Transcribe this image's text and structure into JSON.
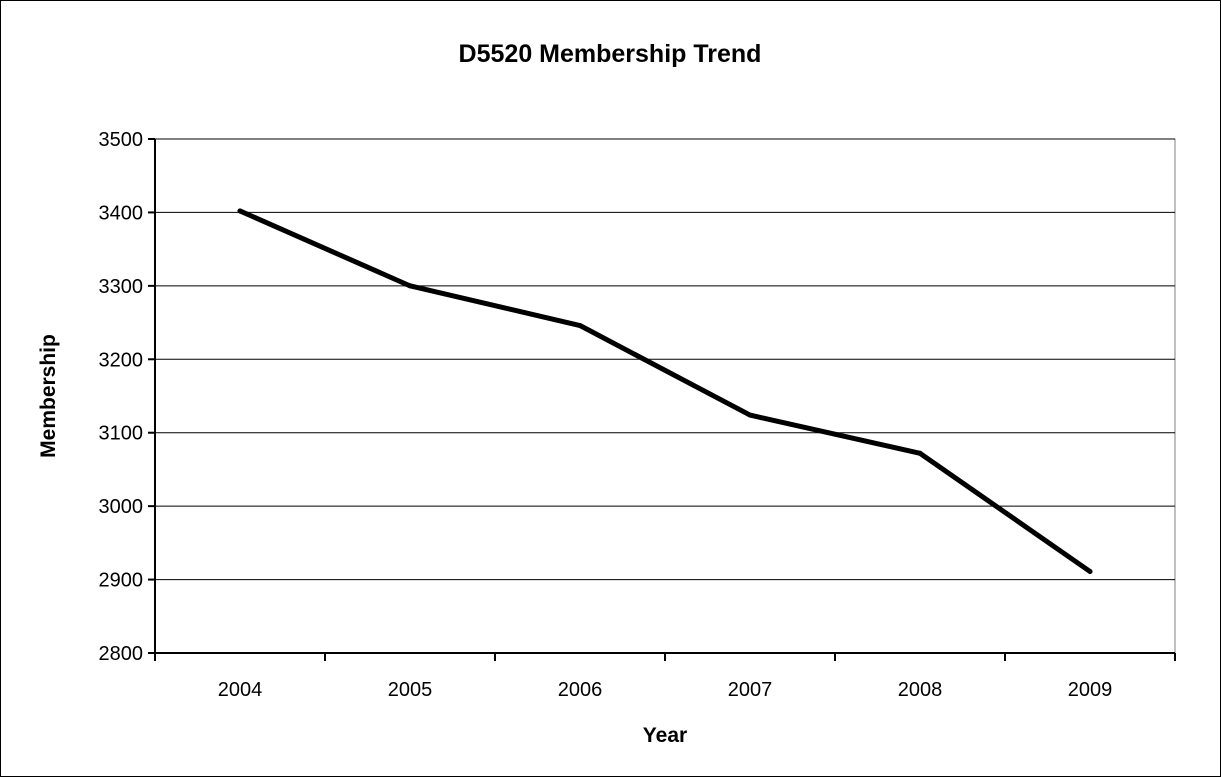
{
  "chart_data": {
    "type": "line",
    "title": "D5520 Membership Trend",
    "xlabel": "Year",
    "ylabel": "Membership",
    "categories": [
      "2004",
      "2005",
      "2006",
      "2007",
      "2008",
      "2009"
    ],
    "series": [
      {
        "values": [
          3402,
          3300,
          3246,
          3124,
          3072,
          2911
        ]
      }
    ],
    "ylim": [
      2800,
      3500
    ],
    "yticks": [
      2800,
      2900,
      3000,
      3100,
      3200,
      3300,
      3400,
      3500
    ],
    "grid": "horizontal",
    "legend": "none",
    "colors": {
      "line": "#000000",
      "grid": "#000000",
      "plot_border": "#808080"
    }
  }
}
